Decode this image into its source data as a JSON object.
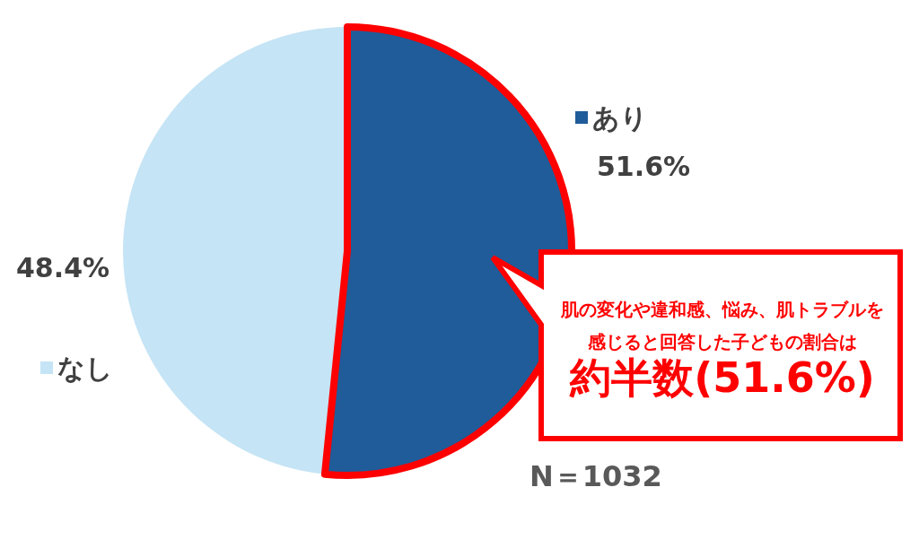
{
  "chart_data": {
    "type": "pie",
    "categories": [
      "あり",
      "なし"
    ],
    "values": [
      51.6,
      48.4
    ],
    "colors": [
      "#1f5c99",
      "#c5e4f5"
    ],
    "value_labels": [
      "51.6%",
      "48.4%"
    ],
    "legend": "right",
    "annotations": [
      {
        "text": "肌の変化や違和感、悩み、肌トラブルを感じると回答した子どもの割合は",
        "x": "あり"
      },
      "約半数(51.6%)",
      "N＝1032"
    ]
  }
}
